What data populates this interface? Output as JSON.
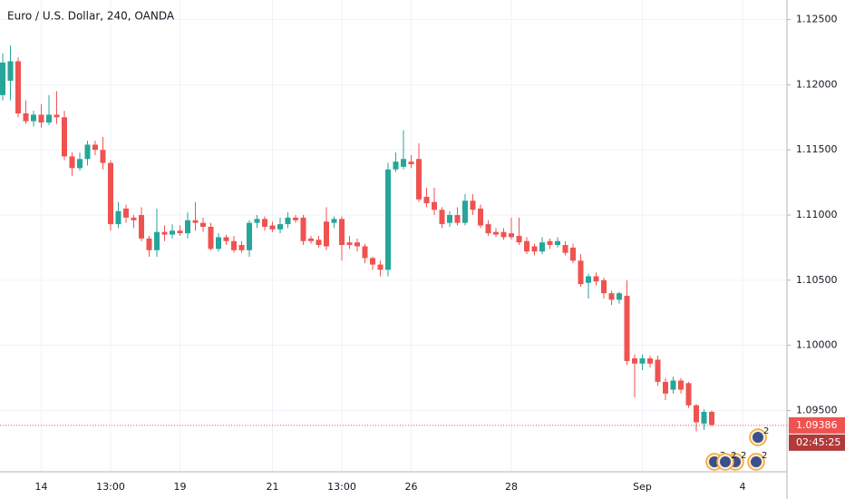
{
  "chart_data": {
    "type": "candlestick",
    "title": "Euro / U.S. Dollar, 240, OANDA",
    "categories": [
      null,
      null,
      null,
      null,
      null,
      "14",
      null,
      null,
      null,
      null,
      null,
      null,
      null,
      null,
      "13:00",
      null,
      null,
      null,
      null,
      null,
      null,
      null,
      null,
      "19",
      null,
      null,
      null,
      null,
      null,
      null,
      null,
      null,
      null,
      null,
      null,
      "21",
      null,
      null,
      null,
      null,
      null,
      null,
      null,
      null,
      "13:00",
      null,
      null,
      null,
      null,
      null,
      null,
      null,
      null,
      "26",
      null,
      null,
      null,
      null,
      null,
      null,
      null,
      null,
      null,
      null,
      null,
      null,
      "28",
      null,
      null,
      null,
      null,
      null,
      null,
      null,
      null,
      null,
      null,
      null,
      null,
      null,
      null,
      null,
      null,
      "Sep",
      null,
      null,
      null,
      null,
      null,
      null,
      null,
      null,
      null,
      null,
      null,
      null,
      "4"
    ],
    "open": [
      1.1192,
      1.1203,
      1.1218,
      1.1178,
      1.1172,
      1.1177,
      1.1171,
      1.1177,
      1.1175,
      1.1145,
      1.1136,
      1.1143,
      1.1154,
      1.115,
      1.114,
      1.1093,
      1.1105,
      1.1098,
      1.11,
      1.1082,
      1.1073,
      1.1087,
      1.1085,
      1.1088,
      1.1086,
      1.1096,
      1.1094,
      1.1091,
      1.1074,
      1.1083,
      1.108,
      1.1077,
      1.1073,
      1.1094,
      1.1097,
      1.1092,
      1.1089,
      1.1093,
      1.1098,
      1.1098,
      1.1082,
      1.1081,
      1.1095,
      1.1094,
      1.1097,
      1.1079,
      1.1079,
      1.1076,
      1.1067,
      1.1062,
      1.1058,
      1.1135,
      1.1137,
      1.1141,
      1.1143,
      1.1114,
      1.111,
      1.1104,
      1.1094,
      1.11,
      1.1094,
      1.1111,
      1.1105,
      1.1093,
      1.1087,
      1.1087,
      1.1086,
      1.1084,
      1.108,
      1.1076,
      1.1072,
      1.108,
      1.1077,
      1.1077,
      1.1075,
      1.1065,
      1.1048,
      1.1053,
      1.105,
      1.104,
      1.1035,
      1.1038,
      1.099,
      1.0986,
      1.099,
      1.0989,
      1.0972,
      1.0966,
      1.0973,
      1.0971,
      1.0954,
      1.094,
      1.0949,
      null,
      null,
      null,
      null
    ],
    "high": [
      1.1224,
      1.123,
      1.1221,
      1.1188,
      1.118,
      1.1185,
      1.1192,
      1.1195,
      1.118,
      1.1148,
      1.1148,
      1.1157,
      1.1157,
      1.116,
      1.1142,
      1.111,
      1.1108,
      1.11,
      1.1106,
      1.1084,
      1.1105,
      1.1092,
      1.1093,
      1.1092,
      1.1102,
      1.111,
      1.1098,
      1.1094,
      1.1086,
      1.1085,
      1.1084,
      1.108,
      1.1096,
      1.11,
      1.1099,
      1.1095,
      1.1098,
      1.1102,
      1.11,
      1.11,
      1.1084,
      1.1084,
      1.1106,
      1.1099,
      1.1099,
      1.1084,
      1.1082,
      1.1078,
      1.1068,
      1.1065,
      1.114,
      1.1148,
      1.1165,
      1.1146,
      1.1155,
      1.1121,
      1.1121,
      1.1106,
      1.1103,
      1.1106,
      1.1116,
      1.1116,
      1.1108,
      1.1096,
      1.109,
      1.109,
      1.1098,
      1.1098,
      1.1083,
      1.1078,
      1.1083,
      1.1082,
      1.1083,
      1.108,
      1.1078,
      1.107,
      1.1055,
      1.1056,
      1.1052,
      1.1042,
      1.1041,
      1.105,
      1.0993,
      1.0993,
      1.0992,
      1.0992,
      1.0975,
      1.0976,
      1.0975,
      1.0972,
      1.0955,
      1.0951,
      1.095,
      null,
      null,
      null,
      null
    ],
    "low": [
      1.1188,
      1.1188,
      1.1175,
      1.117,
      1.1168,
      1.1167,
      1.1169,
      1.117,
      1.1142,
      1.113,
      1.1134,
      1.1138,
      1.1146,
      1.1135,
      1.1088,
      1.109,
      1.1094,
      1.109,
      1.108,
      1.1068,
      1.1068,
      1.108,
      1.1082,
      1.1084,
      1.1082,
      1.1088,
      1.1087,
      1.1073,
      1.1072,
      1.1077,
      1.1071,
      1.1071,
      1.1068,
      1.109,
      1.1088,
      1.1087,
      1.1086,
      1.109,
      1.1094,
      1.1077,
      1.1078,
      1.1075,
      1.1073,
      1.109,
      1.1065,
      1.1074,
      1.1072,
      1.1063,
      1.1058,
      1.1053,
      1.1053,
      1.1133,
      1.1135,
      1.1136,
      1.111,
      1.1106,
      1.11,
      1.109,
      1.1091,
      1.1092,
      1.1092,
      1.11,
      1.109,
      1.1084,
      1.1083,
      1.1081,
      1.1081,
      1.1077,
      1.107,
      1.1069,
      1.107,
      1.1074,
      1.1075,
      1.1069,
      1.1063,
      1.1045,
      1.1036,
      1.1046,
      1.1036,
      1.1031,
      1.1032,
      1.0985,
      1.096,
      1.0981,
      1.0983,
      1.0969,
      1.0958,
      1.0963,
      1.0963,
      1.0952,
      1.0934,
      1.0935,
      1.0938,
      null,
      null,
      null,
      null
    ],
    "close": [
      1.1217,
      1.1218,
      1.1178,
      1.1172,
      1.1177,
      1.1171,
      1.1177,
      1.1175,
      1.1145,
      1.1136,
      1.1143,
      1.1154,
      1.115,
      1.114,
      1.1093,
      1.1103,
      1.1098,
      1.1096,
      1.1082,
      1.1073,
      1.1087,
      1.1085,
      1.1088,
      1.1086,
      1.1096,
      1.1094,
      1.1091,
      1.1074,
      1.1083,
      1.108,
      1.1073,
      1.1073,
      1.1094,
      1.1097,
      1.1091,
      1.1089,
      1.1093,
      1.1098,
      1.1096,
      1.108,
      1.108,
      1.1077,
      1.1076,
      1.1097,
      1.1077,
      1.1077,
      1.1076,
      1.1067,
      1.1062,
      1.1058,
      1.1135,
      1.1141,
      1.1143,
      1.1139,
      1.1112,
      1.1109,
      1.1104,
      1.1093,
      1.11,
      1.1094,
      1.1111,
      1.1104,
      1.1092,
      1.1086,
      1.1085,
      1.1083,
      1.1083,
      1.1079,
      1.1072,
      1.1072,
      1.1079,
      1.1077,
      1.108,
      1.1071,
      1.1065,
      1.1047,
      1.1053,
      1.1049,
      1.104,
      1.1035,
      1.104,
      1.0988,
      1.0986,
      1.099,
      1.0986,
      1.0972,
      1.0963,
      1.0973,
      1.0966,
      1.0954,
      1.0941,
      1.0949,
      1.0939,
      null,
      null,
      null,
      null
    ],
    "up_color": "#26a69a",
    "down_color": "#ef5350",
    "ylim": [
      1.0903,
      1.1265
    ],
    "yticks": [
      {
        "value": 1.125,
        "label": "1.12500"
      },
      {
        "value": 1.12,
        "label": "1.12000"
      },
      {
        "value": 1.115,
        "label": "1.11500"
      },
      {
        "value": 1.11,
        "label": "1.11000"
      },
      {
        "value": 1.105,
        "label": "1.10500"
      },
      {
        "value": 1.1,
        "label": "1.10000"
      },
      {
        "value": 1.095,
        "label": "1.09500"
      }
    ],
    "grid": true,
    "last_price": 1.09386,
    "countdown": "02:45:25",
    "event_badges": [
      2,
      2,
      2,
      2,
      2
    ]
  }
}
